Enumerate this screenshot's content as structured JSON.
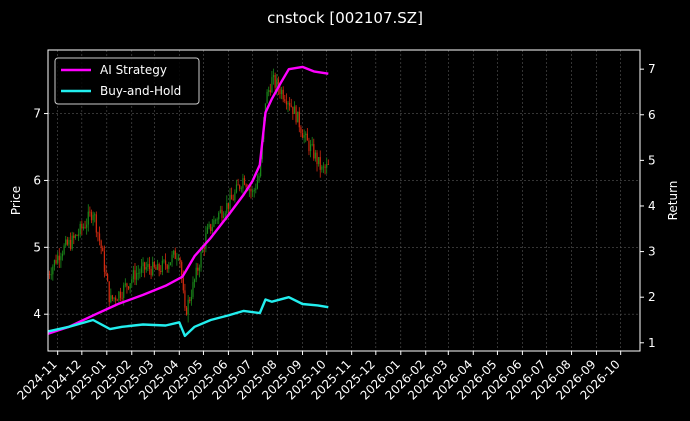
{
  "chart_data": {
    "type": "line",
    "title": "cnstock [002107.SZ]",
    "xlabel": "",
    "ylabel_left": "Price",
    "ylabel_right": "Return",
    "x_ticks": [
      "2024-11",
      "2024-12",
      "2025-01",
      "2025-02",
      "2025-03",
      "2025-04",
      "2025-05",
      "2025-06",
      "2025-07",
      "2025-08",
      "2025-09",
      "2025-10",
      "2025-11",
      "2025-12",
      "2026-01",
      "2026-02",
      "2026-03",
      "2026-04",
      "2026-05",
      "2026-06",
      "2026-07",
      "2026-08",
      "2026-09",
      "2026-10"
    ],
    "xlim": [
      "2024-10-20",
      "2026-10-25"
    ],
    "ylim_left": [
      3.45,
      7.95
    ],
    "ylim_right": [
      0.82,
      7.42
    ],
    "y_ticks_left": [
      "4",
      "5",
      "6",
      "7"
    ],
    "y_ticks_right": [
      "1",
      "2",
      "3",
      "4",
      "5",
      "6",
      "7"
    ],
    "grid": true,
    "legend_position": "top-left",
    "colors": {
      "background": "#000000",
      "axes": "#ffffff",
      "grid": "#555555",
      "ai_strategy": "#ff00ff",
      "buy_and_hold": "#22eeee",
      "candle_up": "#1a8a1a",
      "candle_down": "#d42a10"
    },
    "price_candles": {
      "name": "Price",
      "axis": "left",
      "x": [
        "2024-10-20",
        "2024-11-05",
        "2024-11-20",
        "2024-12-05",
        "2024-12-15",
        "2024-12-25",
        "2025-01-05",
        "2025-01-20",
        "2025-02-05",
        "2025-02-20",
        "2025-03-05",
        "2025-03-20",
        "2025-04-01",
        "2025-04-08",
        "2025-04-20",
        "2025-05-05",
        "2025-05-20",
        "2025-06-05",
        "2025-06-20",
        "2025-07-01",
        "2025-07-10",
        "2025-07-17",
        "2025-07-25",
        "2025-08-05",
        "2025-08-15",
        "2025-08-25",
        "2025-09-05",
        "2025-09-15",
        "2025-09-25",
        "2025-10-03"
      ],
      "close": [
        4.6,
        4.95,
        5.1,
        5.35,
        5.55,
        5.0,
        4.2,
        4.35,
        4.6,
        4.7,
        4.65,
        4.8,
        4.95,
        4.0,
        4.5,
        5.2,
        5.5,
        5.7,
        6.05,
        5.8,
        6.1,
        7.2,
        7.5,
        7.35,
        7.2,
        6.95,
        6.6,
        6.4,
        6.15,
        6.2
      ]
    },
    "series": [
      {
        "name": "AI Strategy",
        "axis": "right",
        "x": [
          "2024-10-20",
          "2024-11-15",
          "2024-12-15",
          "2025-01-15",
          "2025-02-15",
          "2025-03-15",
          "2025-04-05",
          "2025-04-20",
          "2025-05-10",
          "2025-06-01",
          "2025-06-20",
          "2025-07-01",
          "2025-07-10",
          "2025-07-17",
          "2025-07-25",
          "2025-08-05",
          "2025-08-15",
          "2025-09-01",
          "2025-09-15",
          "2025-10-03"
        ],
        "values": [
          1.2,
          1.35,
          1.6,
          1.85,
          2.05,
          2.25,
          2.45,
          2.9,
          3.3,
          3.8,
          4.25,
          4.55,
          4.9,
          6.05,
          6.35,
          6.7,
          7.0,
          7.05,
          6.95,
          6.9
        ]
      },
      {
        "name": "Buy-and-Hold",
        "axis": "right",
        "x": [
          "2024-10-20",
          "2024-11-15",
          "2024-12-15",
          "2025-01-05",
          "2025-01-20",
          "2025-02-15",
          "2025-03-15",
          "2025-04-01",
          "2025-04-08",
          "2025-04-20",
          "2025-05-10",
          "2025-06-01",
          "2025-06-20",
          "2025-07-10",
          "2025-07-17",
          "2025-07-25",
          "2025-08-15",
          "2025-09-01",
          "2025-09-20",
          "2025-10-03"
        ],
        "values": [
          1.25,
          1.35,
          1.5,
          1.3,
          1.35,
          1.4,
          1.38,
          1.45,
          1.15,
          1.35,
          1.5,
          1.6,
          1.7,
          1.65,
          1.95,
          1.9,
          2.0,
          1.85,
          1.82,
          1.78
        ]
      }
    ]
  }
}
